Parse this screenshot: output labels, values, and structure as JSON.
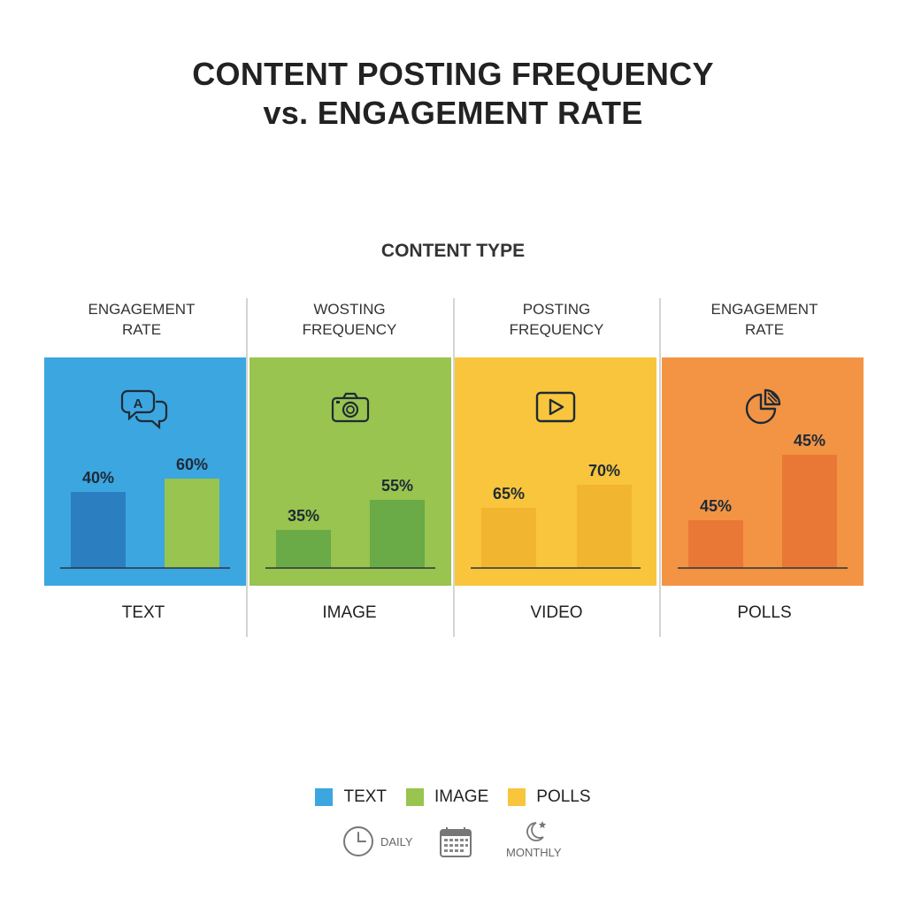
{
  "title": [
    "CONTENT POSTING FREQUENCY",
    "vs. ENGAGEMENT RATE"
  ],
  "section_title": "CONTENT TYPE",
  "colors": {
    "text_panel": "#3ca6e0",
    "image_panel": "#98c44f",
    "video_panel": "#f8c53c",
    "polls_panel": "#f29443",
    "text_bar_dark": "#2b7fc0",
    "text_bar_light": "#98c44f",
    "image_bar": "#6aaa47",
    "video_bar": "#f2b52f",
    "polls_bar": "#e97836"
  },
  "chart_data": {
    "type": "bar",
    "title": "CONTENT POSTING FREQUENCY vs. ENGAGEMENT RATE",
    "xlabel": "CONTENT TYPE",
    "panels": [
      {
        "header": [
          "ENGAGEMENT",
          "RATE"
        ],
        "category": "TEXT",
        "icon": "chat-bubbles-icon",
        "values": [
          40,
          60
        ],
        "labels": [
          "40%",
          "60%"
        ]
      },
      {
        "header": [
          "WOSTING",
          "FREQUENCY"
        ],
        "category": "IMAGE",
        "icon": "camera-icon",
        "values": [
          35,
          55
        ],
        "labels": [
          "35%",
          "55%"
        ]
      },
      {
        "header": [
          "POSTING",
          "FREQUENCY"
        ],
        "category": "VIDEO",
        "icon": "play-icon",
        "values": [
          65,
          70
        ],
        "labels": [
          "65%",
          "70%"
        ]
      },
      {
        "header": [
          "ENGAGEMENT",
          "RATE"
        ],
        "category": "POLLS",
        "icon": "pie-chart-icon",
        "values": [
          45,
          45
        ],
        "labels": [
          "45%",
          "45%"
        ]
      }
    ],
    "legend": [
      "TEXT",
      "IMAGE",
      "POLLS"
    ],
    "legend_colors": [
      "#3ca6e0",
      "#98c44f",
      "#f8c53c"
    ],
    "legend_position": "bottom"
  },
  "frequency_legend": [
    {
      "icon": "clock-icon",
      "label": "DAILY"
    },
    {
      "icon": "calendar-icon",
      "label": ""
    },
    {
      "icon": "moon-star-icon",
      "label": "MONTHLY"
    }
  ]
}
